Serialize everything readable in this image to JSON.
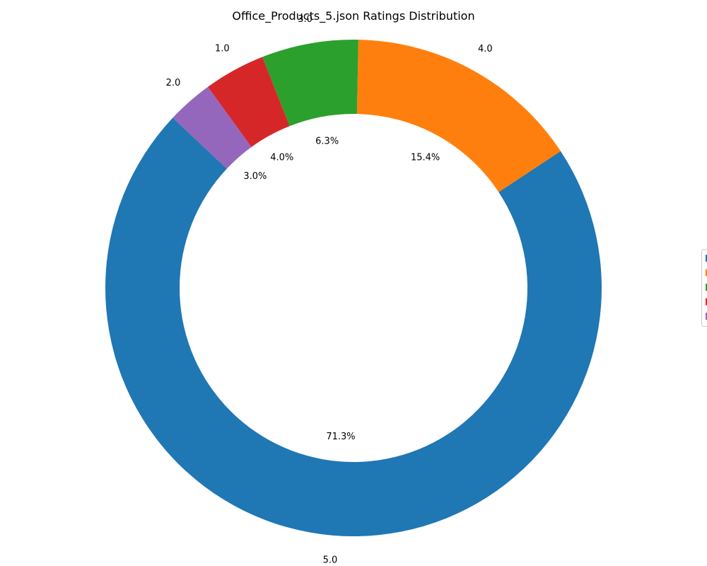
{
  "chart_data": {
    "type": "pie",
    "title": "Office_Products_5.json Ratings Distribution",
    "donut": true,
    "categories": [
      "5.0",
      "4.0",
      "3.0",
      "1.0",
      "2.0"
    ],
    "values": [
      71.3,
      15.4,
      6.3,
      4.0,
      3.0
    ],
    "percent_labels": [
      "71.3%",
      "15.4%",
      "6.3%",
      "4.0%",
      "3.0%"
    ],
    "colors": [
      "#1f77b4",
      "#ff7f0e",
      "#2ca02c",
      "#d62728",
      "#9467bd"
    ],
    "legend": {
      "placement": "right",
      "entries": [
        "",
        "",
        "",
        "",
        ""
      ]
    }
  }
}
